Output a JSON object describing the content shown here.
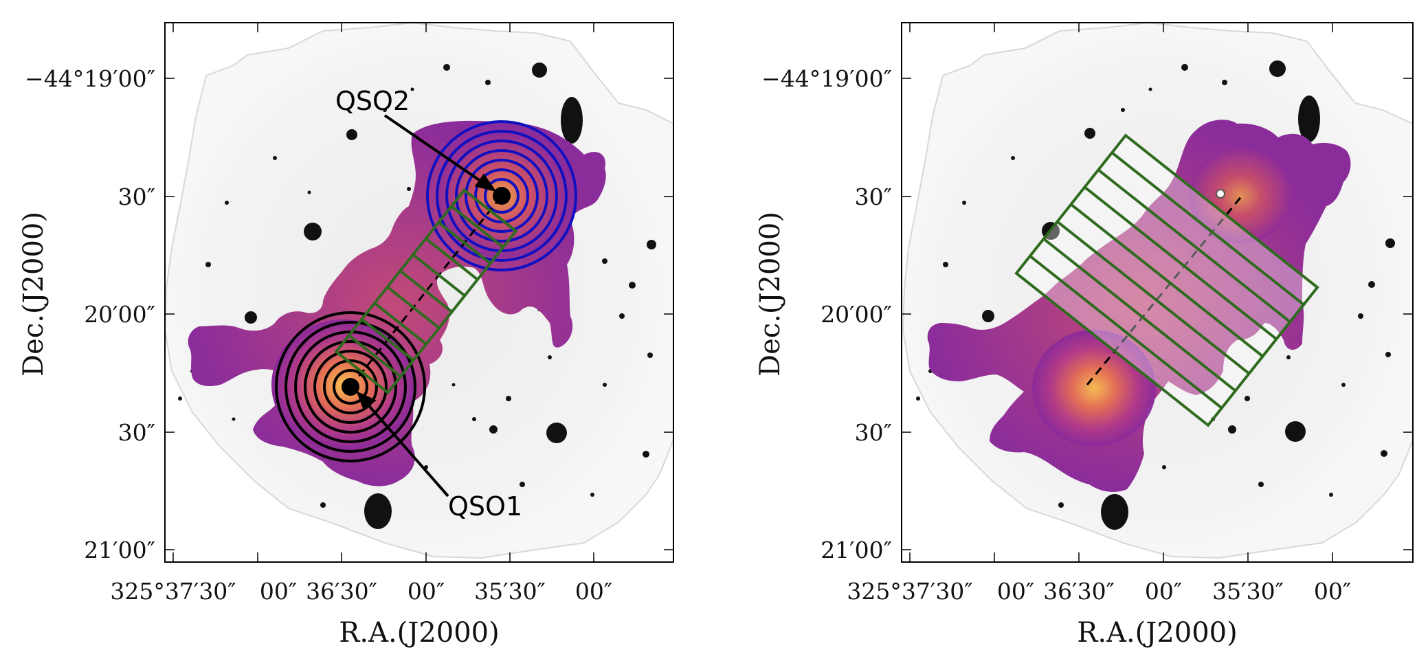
{
  "figure": {
    "panels": [
      {
        "id": "left",
        "y_ticks": [
          "−44°19′00″",
          "30″",
          "20′00″",
          "30″",
          "21′00″"
        ],
        "x_ticks": [
          "325°37′30″",
          "00″",
          "36′30″",
          "00″",
          "35′30″",
          "00″"
        ],
        "xlabel": "R.A.(J2000)",
        "ylabel": "Dec.(J2000)",
        "annotations": {
          "qso2": "QSO2",
          "qso1": "QSO1"
        }
      },
      {
        "id": "right",
        "y_ticks": [
          "−44°19′00″",
          "30″",
          "20′00″",
          "30″",
          "21′00″"
        ],
        "x_ticks": [
          "325°37′30″",
          "00″",
          "36′30″",
          "00″",
          "35′30″",
          "00″"
        ],
        "xlabel": "R.A.(J2000)",
        "ylabel": "Dec.(J2000)"
      }
    ],
    "colors": {
      "qso1_rings": "#000000",
      "qso2_rings": "#1010c0",
      "slits": "#2f6b1f",
      "nebula_edge": "#8a2a9a",
      "nebula_core": "#f6b24a"
    }
  }
}
